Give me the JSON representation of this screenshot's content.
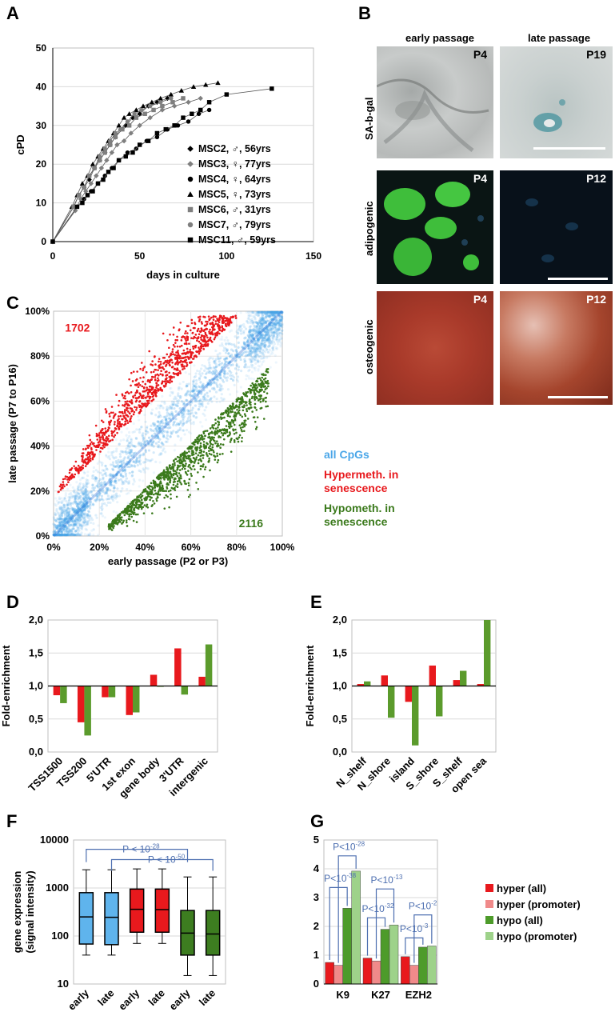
{
  "panels": {
    "A": "A",
    "B": "B",
    "C": "C",
    "D": "D",
    "E": "E",
    "F": "F",
    "G": "G"
  },
  "microscopy": {
    "col_early": "early passage",
    "col_late": "late passage",
    "rows": [
      {
        "label": "SA-b-gal",
        "early_passage": "P4",
        "late_passage": "P19"
      },
      {
        "label": "adipogenic",
        "early_passage": "P4",
        "late_passage": "P12"
      },
      {
        "label": "osteogenic",
        "early_passage": "P4",
        "late_passage": "P12"
      }
    ]
  },
  "chart_data": [
    {
      "id": "A",
      "type": "line",
      "xlabel": "days in culture",
      "ylabel": "cPD",
      "xlim": [
        0,
        150
      ],
      "ylim": [
        0,
        50
      ],
      "xticks": [
        0,
        50,
        100,
        150
      ],
      "yticks": [
        0,
        10,
        20,
        30,
        40,
        50
      ],
      "legend_position": "bottom-right",
      "series": [
        {
          "name": "MSC2, ♂, 56yrs",
          "marker": "diamond",
          "color": "#000000",
          "x": [
            0,
            12,
            15,
            18,
            21,
            24,
            27,
            30,
            33,
            36,
            39,
            42,
            46,
            50,
            55,
            60,
            66
          ],
          "y": [
            0,
            9,
            12,
            14,
            16,
            19,
            21,
            23,
            25,
            27,
            29,
            30,
            32,
            33,
            35,
            36,
            37
          ]
        },
        {
          "name": "MSC3, ♀, 77yrs",
          "marker": "diamond",
          "color": "#7f7f7f",
          "x": [
            0,
            13,
            16,
            19,
            22,
            25,
            28,
            31,
            34,
            37,
            41,
            45,
            50,
            56,
            63,
            70,
            78,
            85
          ],
          "y": [
            0,
            8,
            11,
            13,
            15,
            17,
            19,
            21,
            23,
            25,
            26,
            28,
            30,
            32,
            34,
            35,
            36,
            37
          ]
        },
        {
          "name": "MSC4, ♀, 64yrs",
          "marker": "circle",
          "color": "#000000",
          "x": [
            0,
            14,
            18,
            22,
            26,
            30,
            34,
            38,
            43,
            48,
            54,
            60,
            66,
            72,
            78,
            84,
            90
          ],
          "y": [
            0,
            9,
            11,
            13,
            15,
            17,
            19,
            21,
            23,
            24,
            26,
            27,
            29,
            30,
            31,
            33,
            34
          ]
        },
        {
          "name": "MSC5, ♀, 73yrs",
          "marker": "triangle",
          "color": "#000000",
          "x": [
            0,
            11,
            14,
            17,
            20,
            23,
            26,
            29,
            32,
            35,
            38,
            41,
            44,
            48,
            52,
            57,
            62,
            68,
            74,
            81,
            88,
            95
          ],
          "y": [
            0,
            9,
            12,
            15,
            17,
            20,
            22,
            24,
            26,
            28,
            30,
            32,
            33,
            34,
            35,
            36,
            37,
            38,
            39,
            40,
            40.5,
            41
          ]
        },
        {
          "name": "MSC6, ♂, 31yrs",
          "marker": "square",
          "color": "#7f7f7f",
          "x": [
            0,
            12,
            15,
            18,
            21,
            24,
            27,
            30,
            33,
            36,
            40,
            44,
            48,
            53,
            58,
            63,
            69,
            75
          ],
          "y": [
            0,
            9,
            12,
            14,
            17,
            19,
            21,
            23,
            25,
            27,
            29,
            30,
            32,
            33,
            34,
            35,
            36,
            37
          ]
        },
        {
          "name": "MSC7, ♂, 79yrs",
          "marker": "circle",
          "color": "#7f7f7f",
          "x": [
            0,
            12,
            15,
            18,
            21,
            24,
            27,
            30,
            33,
            36,
            39,
            43,
            47,
            51,
            56,
            62,
            68
          ],
          "y": [
            0,
            9,
            12,
            14,
            17,
            19,
            22,
            24,
            26,
            28,
            29,
            31,
            33,
            34,
            35,
            36,
            37
          ]
        },
        {
          "name": "MSC11, ♂, 59yrs",
          "marker": "square",
          "color": "#000000",
          "x": [
            0,
            14,
            17,
            20,
            23,
            26,
            29,
            32,
            35,
            38,
            42,
            46,
            50,
            55,
            60,
            65,
            70,
            75,
            80,
            85,
            90,
            100,
            126
          ],
          "y": [
            0,
            9,
            10,
            12,
            13,
            15,
            16,
            18,
            19,
            21,
            22,
            23,
            25,
            26,
            28,
            29,
            30,
            32,
            33,
            34,
            36,
            38,
            39.5
          ]
        }
      ]
    },
    {
      "id": "C",
      "type": "scatter",
      "xlabel": "early passage (P2 or P3)",
      "ylabel": "late passage (P7 to P16)",
      "xlim": [
        0,
        100
      ],
      "ylim": [
        0,
        100
      ],
      "xticks": [
        "0%",
        "20%",
        "40%",
        "60%",
        "80%",
        "100%"
      ],
      "yticks": [
        "0%",
        "20%",
        "40%",
        "60%",
        "80%",
        "100%"
      ],
      "annotations": [
        {
          "text": "1702",
          "color": "#e8191d"
        },
        {
          "text": "2116",
          "color": "#3b7a1c"
        }
      ],
      "series": [
        {
          "name": "all CpGs",
          "color": "#4aa6e8"
        },
        {
          "name": "Hypermeth. in senescence",
          "color": "#e8191d",
          "count": 1702
        },
        {
          "name": "Hypometh. in senescence",
          "color": "#3b7a1c",
          "count": 2116
        }
      ]
    },
    {
      "id": "D",
      "type": "bar",
      "ylabel": "Fold-enrichment",
      "ylim": [
        0,
        2
      ],
      "baseline": 1,
      "yticks": [
        "0,0",
        "0,5",
        "1,0",
        "1,5",
        "2,0"
      ],
      "categories": [
        "TSS1500",
        "TSS200",
        "5'UTR",
        "1st exon",
        "gene body",
        "3'UTR",
        "intergenic"
      ],
      "series": [
        {
          "color": "#e8191d",
          "values": [
            0.86,
            0.45,
            0.83,
            0.56,
            1.17,
            1.57,
            1.14
          ]
        },
        {
          "color": "#5b9b2c",
          "values": [
            0.74,
            0.25,
            0.83,
            0.6,
            1.0,
            0.87,
            1.63
          ]
        }
      ]
    },
    {
      "id": "E",
      "type": "bar",
      "ylabel": "Fold-enrichment",
      "ylim": [
        0,
        2
      ],
      "baseline": 1,
      "yticks": [
        "0,0",
        "0,5",
        "1,0",
        "1,5",
        "2,0"
      ],
      "categories": [
        "N_shelf",
        "N_shore",
        "island",
        "S_shore",
        "S_shelf",
        "open sea"
      ],
      "series": [
        {
          "color": "#e8191d",
          "values": [
            1.03,
            1.16,
            0.76,
            1.31,
            1.09,
            1.03
          ]
        },
        {
          "color": "#5b9b2c",
          "values": [
            1.07,
            0.52,
            0.1,
            0.54,
            1.23,
            2.0
          ]
        }
      ]
    },
    {
      "id": "F",
      "type": "box",
      "ylabel": "gene expression (signal intensity)",
      "scale": "log",
      "ylim": [
        10,
        10000
      ],
      "yticks": [
        "10",
        "100",
        "1000",
        "10000"
      ],
      "categories": [
        "early",
        "late",
        "early",
        "late",
        "early",
        "late"
      ],
      "annotations": [
        {
          "text": "P < 10",
          "sup": "-28"
        },
        {
          "text": "P < 10",
          "sup": "-50"
        }
      ],
      "boxes": [
        {
          "color": "#5fb4ed",
          "whisker_low": 40,
          "q1": 68,
          "median": 250,
          "q3": 800,
          "whisker_high": 2400
        },
        {
          "color": "#5fb4ed",
          "whisker_low": 40,
          "q1": 66,
          "median": 245,
          "q3": 800,
          "whisker_high": 2400
        },
        {
          "color": "#e8191d",
          "whisker_low": 70,
          "q1": 120,
          "median": 360,
          "q3": 950,
          "whisker_high": 2500
        },
        {
          "color": "#e8191d",
          "whisker_low": 70,
          "q1": 120,
          "median": 355,
          "q3": 950,
          "whisker_high": 2500
        },
        {
          "color": "#3d7d20",
          "whisker_low": 15,
          "q1": 40,
          "median": 115,
          "q3": 340,
          "whisker_high": 1700
        },
        {
          "color": "#3d7d20",
          "whisker_low": 15,
          "q1": 40,
          "median": 110,
          "q3": 340,
          "whisker_high": 1700
        }
      ]
    },
    {
      "id": "G",
      "type": "bar",
      "ylabel": "Fold-enrichment",
      "ylim": [
        0,
        5
      ],
      "yticks": [
        "0",
        "1",
        "2",
        "3",
        "4",
        "5"
      ],
      "categories": [
        "K9",
        "K27",
        "EZH2"
      ],
      "legend_position": "right",
      "series": [
        {
          "name": "hyper (all)",
          "color": "#e8191d",
          "values": [
            0.75,
            0.9,
            0.95
          ]
        },
        {
          "name": "hyper (promoter)",
          "color": "#f08a8a",
          "values": [
            0.65,
            0.8,
            0.65
          ]
        },
        {
          "name": "hypo (all)",
          "color": "#4d9b2a",
          "values": [
            2.63,
            1.9,
            1.28
          ]
        },
        {
          "name": "hypo (promoter)",
          "color": "#9ed28a",
          "values": [
            3.92,
            2.05,
            1.32
          ]
        }
      ],
      "annotations": [
        {
          "text": "P<10",
          "sup": "-38"
        },
        {
          "text": "P<10",
          "sup": "-28"
        },
        {
          "text": "P<10",
          "sup": "-32"
        },
        {
          "text": "P<10",
          "sup": "-13"
        },
        {
          "text": "P<10",
          "sup": "-3"
        },
        {
          "text": "P<10",
          "sup": "-2"
        }
      ]
    }
  ]
}
